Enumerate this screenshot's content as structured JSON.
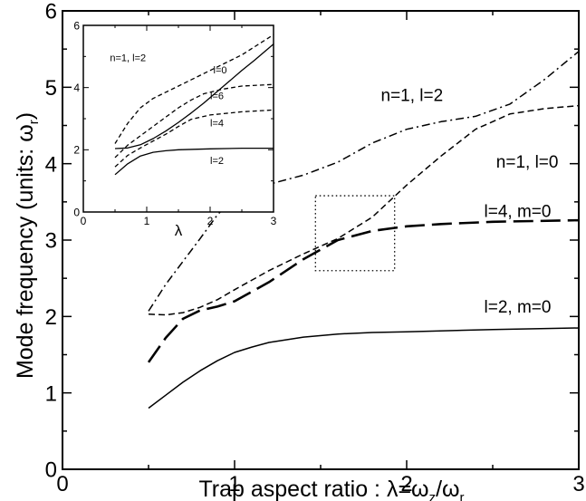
{
  "chart_data": [
    {
      "panel": "main",
      "type": "line",
      "xlabel_prefix": "Trap aspect ratio :  λ=ω",
      "xlabel_sub1": "z",
      "xlabel_mid": "/ω",
      "xlabel_sub2": "r",
      "ylabel_prefix": "Mode frequency (units: ω",
      "ylabel_sub": "r",
      "ylabel_suffix": ")",
      "xlim": [
        0,
        3
      ],
      "ylim": [
        0,
        6
      ],
      "xticks": [
        0,
        1,
        2,
        3
      ],
      "xtick_labels": [
        "0",
        "1",
        "2",
        "3"
      ],
      "yticks": [
        0,
        1,
        2,
        3,
        4,
        5,
        6
      ],
      "ytick_labels": [
        "0",
        "1",
        "2",
        "3",
        "4",
        "5",
        "6"
      ],
      "grid": false,
      "series": [
        {
          "name": "l=2, m=0",
          "style": "solid",
          "x": [
            0.5,
            0.6,
            0.7,
            0.8,
            0.9,
            1.0,
            1.1,
            1.2,
            1.4,
            1.6,
            1.8,
            2.0,
            2.5,
            3.0
          ],
          "y": [
            0.8,
            0.97,
            1.14,
            1.29,
            1.42,
            1.53,
            1.6,
            1.66,
            1.73,
            1.77,
            1.79,
            1.8,
            1.83,
            1.85
          ]
        },
        {
          "name": "l=4, m=0",
          "style": "long-dash",
          "x": [
            0.5,
            0.6,
            0.7,
            0.8,
            0.9,
            1.0,
            1.2,
            1.4,
            1.6,
            1.8,
            2.0,
            2.2,
            2.5,
            3.0
          ],
          "y": [
            1.4,
            1.72,
            1.97,
            2.08,
            2.13,
            2.2,
            2.45,
            2.75,
            3.0,
            3.12,
            3.18,
            3.21,
            3.24,
            3.26
          ]
        },
        {
          "name": "n=1, l=0",
          "style": "short-dash",
          "x": [
            0.5,
            0.6,
            0.7,
            0.8,
            0.9,
            1.0,
            1.2,
            1.4,
            1.6,
            1.8,
            2.0,
            2.2,
            2.4,
            2.6,
            2.8,
            3.0
          ],
          "y": [
            2.03,
            2.02,
            2.05,
            2.12,
            2.22,
            2.35,
            2.6,
            2.82,
            3.02,
            3.3,
            3.72,
            4.1,
            4.45,
            4.65,
            4.72,
            4.76
          ]
        },
        {
          "name": "n=1, l=2",
          "style": "dash-dot",
          "x": [
            0.5,
            0.6,
            0.7,
            0.8,
            0.9,
            1.0,
            1.2,
            1.4,
            1.6,
            1.8,
            2.0,
            2.2,
            2.4,
            2.6,
            2.8,
            3.0
          ],
          "y": [
            2.07,
            2.42,
            2.72,
            3.02,
            3.33,
            3.56,
            3.73,
            3.85,
            4.02,
            4.27,
            4.45,
            4.55,
            4.62,
            4.78,
            5.1,
            5.47
          ]
        }
      ],
      "annotations": [
        {
          "text": "n=1, l=2",
          "x": 1.85,
          "y": 4.82
        },
        {
          "text": "n=1, l=0",
          "x": 2.52,
          "y": 3.95
        },
        {
          "text": "l=4, m=0",
          "x": 2.45,
          "y": 3.3
        },
        {
          "text": "l=2, m=0",
          "x": 2.45,
          "y": 2.05
        }
      ],
      "highlight_box": {
        "x": [
          1.47,
          1.93
        ],
        "y": [
          2.6,
          3.58
        ],
        "style": "dotted"
      }
    },
    {
      "panel": "inset",
      "type": "line",
      "xlabel": "λ",
      "xlim": [
        0,
        3
      ],
      "ylim": [
        0,
        6
      ],
      "xticks": [
        0,
        1,
        2,
        3
      ],
      "xtick_labels": [
        "0",
        "1",
        "2",
        "3"
      ],
      "yticks": [
        0,
        2,
        4,
        6
      ],
      "ytick_labels": [
        "0",
        "2",
        "4",
        "6"
      ],
      "grid": false,
      "series": [
        {
          "name": "l=2",
          "style": "solid",
          "x": [
            0.5,
            0.7,
            0.9,
            1.1,
            1.3,
            1.5,
            2.0,
            2.5,
            3.0
          ],
          "y": [
            1.2,
            1.55,
            1.8,
            1.92,
            1.97,
            2.0,
            2.03,
            2.05,
            2.05
          ]
        },
        {
          "name": "l=0",
          "style": "solid",
          "x": [
            0.5,
            0.7,
            0.9,
            1.1,
            1.3,
            1.5,
            1.7,
            1.9,
            2.1,
            2.3,
            2.5,
            2.7,
            3.0
          ],
          "y": [
            2.04,
            2.06,
            2.16,
            2.36,
            2.6,
            2.88,
            3.18,
            3.5,
            3.85,
            4.2,
            4.55,
            4.88,
            5.4
          ]
        },
        {
          "name": "l=4",
          "style": "dash",
          "x": [
            0.5,
            0.7,
            0.9,
            1.1,
            1.3,
            1.5,
            1.7,
            2.0,
            2.5,
            3.0
          ],
          "y": [
            1.45,
            1.82,
            2.06,
            2.28,
            2.5,
            2.75,
            2.98,
            3.12,
            3.22,
            3.28
          ]
        },
        {
          "name": "l=6",
          "style": "dash",
          "x": [
            0.5,
            0.7,
            0.9,
            1.1,
            1.3,
            1.5,
            1.7,
            1.9,
            2.2,
            2.5,
            3.0
          ],
          "y": [
            1.75,
            2.15,
            2.45,
            2.75,
            3.05,
            3.35,
            3.6,
            3.8,
            3.95,
            4.05,
            4.1
          ]
        },
        {
          "name": "n=1, l=2",
          "style": "dash",
          "x": [
            0.5,
            0.7,
            0.9,
            1.1,
            1.3,
            1.5,
            1.7,
            1.9,
            2.2,
            2.5,
            3.0
          ],
          "y": [
            2.2,
            2.85,
            3.35,
            3.65,
            3.85,
            4.05,
            4.25,
            4.45,
            4.75,
            5.05,
            5.7
          ]
        }
      ],
      "annotations": [
        {
          "text": "n=1, l=2",
          "x": 0.42,
          "y": 4.85
        },
        {
          "text": "l=0",
          "x": 2.05,
          "y": 4.45
        },
        {
          "text": "l=6",
          "x": 2.0,
          "y": 3.62
        },
        {
          "text": "l=4",
          "x": 2.0,
          "y": 2.75
        },
        {
          "text": "l=2",
          "x": 2.0,
          "y": 1.55
        }
      ]
    }
  ]
}
